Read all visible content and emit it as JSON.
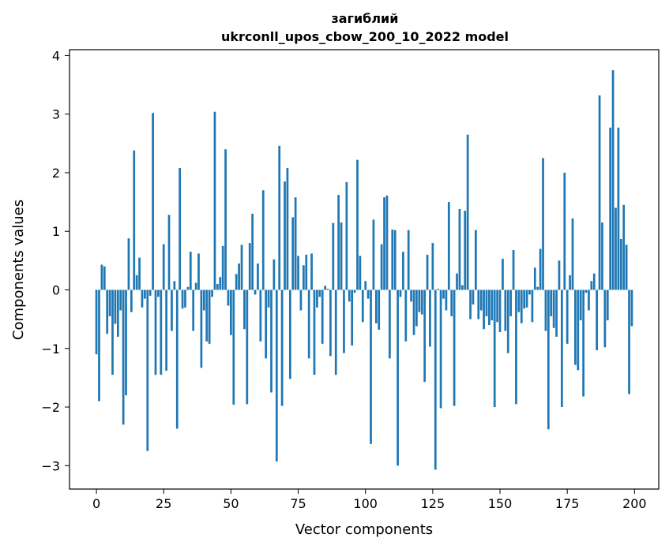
{
  "chart_data": {
    "type": "bar",
    "title_line1": "загиблий",
    "title_line2": "ukrconll_upos_cbow_200_10_2022 model",
    "xlabel": "Vector components",
    "ylabel": "Components values",
    "xlim": [
      -10,
      209
    ],
    "ylim": [
      -3.4,
      4.1
    ],
    "xticks": [
      0,
      25,
      50,
      75,
      100,
      125,
      150,
      175,
      200
    ],
    "xtick_labels": [
      "0",
      "25",
      "50",
      "75",
      "100",
      "125",
      "150",
      "175",
      "200"
    ],
    "yticks": [
      -3,
      -2,
      -1,
      0,
      1,
      2,
      3,
      4
    ],
    "ytick_labels": [
      "−3",
      "−2",
      "−1",
      "0",
      "1",
      "2",
      "3",
      "4"
    ],
    "bar_color": "#1f77b4",
    "values": [
      -1.1,
      -1.9,
      0.43,
      0.4,
      -0.75,
      -0.45,
      -1.45,
      -0.58,
      -0.8,
      -0.35,
      -2.3,
      -1.8,
      0.88,
      -0.38,
      2.38,
      0.25,
      0.55,
      -0.3,
      -0.15,
      -2.75,
      -0.1,
      3.02,
      -1.45,
      -0.12,
      -1.45,
      0.78,
      -1.38,
      1.28,
      -0.7,
      0.15,
      -2.37,
      2.08,
      -0.32,
      -0.3,
      0.05,
      0.65,
      -0.7,
      0.12,
      0.62,
      -1.33,
      -0.35,
      -0.88,
      -0.92,
      -0.12,
      3.04,
      0.1,
      0.22,
      0.75,
      2.4,
      -0.27,
      -0.77,
      -1.96,
      0.27,
      0.45,
      0.77,
      -0.67,
      -1.95,
      0.8,
      1.3,
      -0.08,
      0.45,
      -0.88,
      1.7,
      -1.17,
      -0.3,
      -1.75,
      0.52,
      -2.93,
      2.46,
      -1.98,
      1.85,
      2.08,
      -1.52,
      1.24,
      1.58,
      0.58,
      -0.35,
      0.42,
      0.6,
      -1.17,
      0.62,
      -1.45,
      -0.3,
      -0.12,
      -0.92,
      0.07,
      0.02,
      -1.13,
      1.14,
      -1.45,
      1.62,
      1.15,
      -1.08,
      1.84,
      -0.2,
      -0.95,
      -0.05,
      2.22,
      0.58,
      -0.55,
      0.15,
      -0.15,
      -2.63,
      1.2,
      -0.57,
      -0.68,
      0.78,
      1.58,
      1.61,
      -1.17,
      1.03,
      1.02,
      -3.0,
      -0.12,
      0.65,
      -0.88,
      1.02,
      -0.2,
      -0.77,
      -0.62,
      -0.38,
      -0.42,
      -1.57,
      0.6,
      -0.97,
      0.8,
      -3.07,
      0.02,
      -2.02,
      -0.15,
      -0.35,
      1.5,
      -0.45,
      -1.98,
      0.28,
      1.38,
      0.08,
      1.35,
      2.65,
      -0.5,
      -0.25,
      1.02,
      -0.5,
      -0.35,
      -0.67,
      -0.45,
      -0.6,
      -0.52,
      -2.0,
      -0.55,
      -0.72,
      0.53,
      -0.7,
      -1.08,
      -0.45,
      0.68,
      -1.95,
      -0.38,
      -0.57,
      -0.32,
      -0.3,
      -0.08,
      -0.55,
      0.38,
      0.05,
      0.7,
      2.25,
      -0.7,
      -2.38,
      -0.45,
      -0.65,
      -0.8,
      0.5,
      -2.0,
      2.0,
      -0.92,
      0.25,
      1.22,
      -1.28,
      -1.37,
      -0.52,
      -1.82,
      -0.05,
      -0.35,
      0.15,
      0.28,
      -1.03,
      3.32,
      1.15,
      -0.98,
      -0.52,
      2.77,
      3.75,
      1.4,
      2.77,
      0.87,
      1.45,
      0.77,
      -1.78,
      -0.62
    ]
  }
}
